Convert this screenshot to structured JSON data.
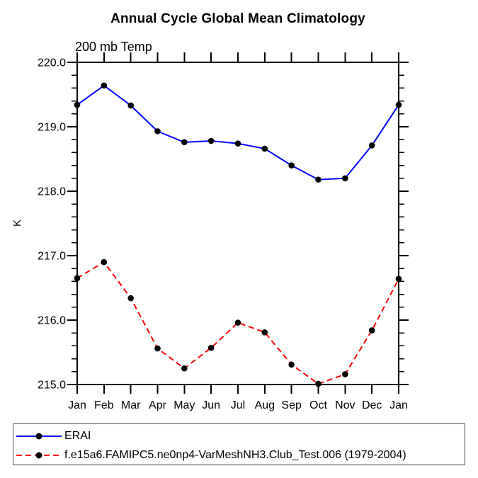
{
  "title": "Annual Cycle Global Mean Climatology",
  "subtitle": "200 mb Temp",
  "y_axis_label": "K",
  "chart_data": {
    "type": "line",
    "x_categories": [
      "Jan",
      "Feb",
      "Mar",
      "Apr",
      "May",
      "Jun",
      "Jul",
      "Aug",
      "Sep",
      "Oct",
      "Nov",
      "Dec",
      "Jan"
    ],
    "ylabel": "K",
    "ylim": [
      215.0,
      220.0
    ],
    "y_major_step": 1.0,
    "y_minor_step": 0.2,
    "y_tick_labels": [
      "215.0",
      "216.0",
      "217.0",
      "218.0",
      "219.0",
      "220.0"
    ],
    "grid": false,
    "legend_position": "bottom",
    "series": [
      {
        "name": "ERAI",
        "color": "#0000ff",
        "line_style": "solid",
        "marker": "circle",
        "marker_color": "#000000",
        "values": [
          219.34,
          219.64,
          219.33,
          218.93,
          218.76,
          218.78,
          218.74,
          218.66,
          218.4,
          218.18,
          218.2,
          218.71,
          219.34
        ]
      },
      {
        "name": "f.e15a6.FAMIPC5.ne0np4-VarMeshNH3.Club_Test.006 (1979-2004)",
        "color": "#ff0000",
        "line_style": "dashed",
        "marker": "circle",
        "marker_color": "#000000",
        "values": [
          216.65,
          216.9,
          216.34,
          215.56,
          215.25,
          215.57,
          215.96,
          215.81,
          215.31,
          215.01,
          215.16,
          215.84,
          216.64
        ]
      }
    ]
  }
}
